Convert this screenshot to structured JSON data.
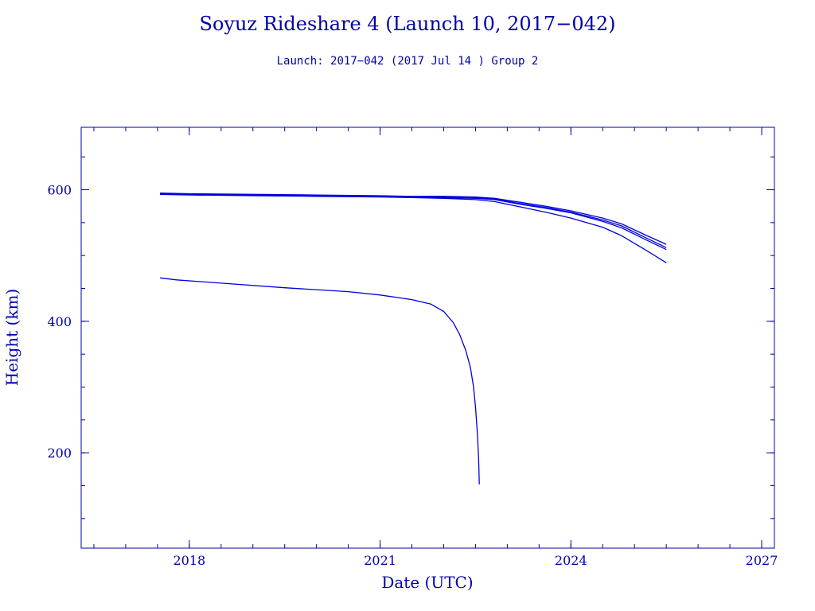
{
  "title": "Soyuz Rideshare 4 (Launch 10, 2017−042)",
  "subtitle": "Launch: 2017−042  (2017 Jul 14 )  Group 2",
  "chart_data": {
    "type": "line",
    "title": "Soyuz Rideshare 4 (Launch 10, 2017−042)",
    "subtitle": "Launch: 2017−042  (2017 Jul 14 )  Group 2",
    "xlabel": "Date (UTC)",
    "ylabel": "Height (km)",
    "xlim": [
      2016.3,
      2027.2
    ],
    "ylim": [
      55,
      695
    ],
    "x_major_ticks": [
      2018,
      2021,
      2024,
      2027
    ],
    "x_tick_labels": [
      "2018",
      "2021",
      "2024",
      "2027"
    ],
    "x_minor_step": 0.5,
    "y_major_ticks": [
      200,
      400,
      600
    ],
    "y_tick_labels": [
      "200",
      "400",
      "600"
    ],
    "y_minor_step": 50,
    "grid": false,
    "line_color": "#0000dd",
    "series": [
      {
        "x": [
          2017.54,
          2018.0,
          2019.0,
          2020.0,
          2021.0,
          2021.5,
          2022.0,
          2022.5,
          2022.8,
          2023.2,
          2023.6,
          2024.0,
          2024.5,
          2024.8,
          2025.2,
          2025.5
        ],
        "y": [
          595,
          594,
          593,
          592,
          591,
          590,
          590,
          589,
          587,
          581,
          575,
          568,
          557,
          548,
          530,
          517
        ]
      },
      {
        "x": [
          2017.54,
          2018.0,
          2019.0,
          2020.0,
          2021.0,
          2021.5,
          2022.0,
          2022.5,
          2022.8,
          2023.2,
          2023.6,
          2024.0,
          2024.5,
          2024.8,
          2025.2,
          2025.5
        ],
        "y": [
          594,
          593,
          592,
          591,
          590,
          589,
          589,
          588,
          586,
          579,
          573,
          566,
          554,
          545,
          526,
          512
        ]
      },
      {
        "x": [
          2017.54,
          2018.0,
          2019.0,
          2020.0,
          2021.0,
          2021.5,
          2022.0,
          2022.5,
          2022.8,
          2023.2,
          2023.6,
          2024.0,
          2024.5,
          2024.8,
          2025.2,
          2025.5
        ],
        "y": [
          594,
          593,
          592,
          591,
          590,
          589,
          588,
          587,
          585,
          578,
          572,
          565,
          552,
          542,
          523,
          509
        ]
      },
      {
        "x": [
          2017.54,
          2018.0,
          2019.0,
          2020.0,
          2021.0,
          2021.5,
          2022.0,
          2022.5,
          2022.8,
          2023.2,
          2023.6,
          2024.0,
          2024.5,
          2024.8,
          2025.2,
          2025.5
        ],
        "y": [
          593,
          592,
          591,
          590,
          589,
          588,
          587,
          585,
          582,
          574,
          566,
          557,
          543,
          530,
          507,
          489
        ]
      },
      {
        "x": [
          2017.54,
          2017.8,
          2018.5,
          2019.5,
          2020.5,
          2021.0,
          2021.5,
          2021.8,
          2022.0,
          2022.15,
          2022.25,
          2022.35,
          2022.42,
          2022.47,
          2022.5,
          2022.53,
          2022.55,
          2022.56
        ],
        "y": [
          466,
          463,
          458,
          451,
          445,
          440,
          433,
          426,
          415,
          398,
          380,
          355,
          330,
          300,
          270,
          230,
          190,
          152
        ]
      }
    ]
  }
}
